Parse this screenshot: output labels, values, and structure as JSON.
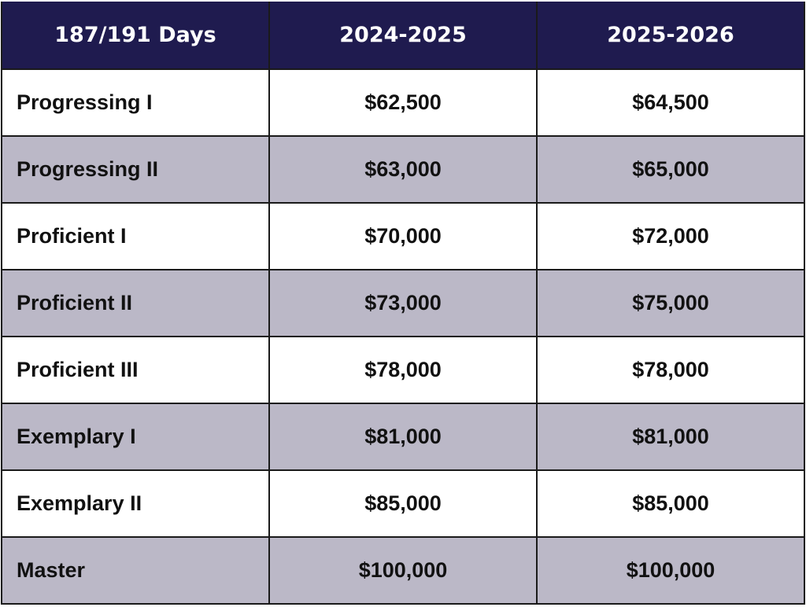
{
  "header": {
    "col1": "187/191 Days",
    "col2": "2024-2025",
    "col3": "2025-2026"
  },
  "rows": [
    {
      "level": "Progressing I",
      "y2024": "$62,500",
      "y2025": "$64,500"
    },
    {
      "level": "Progressing II",
      "y2024": "$63,000",
      "y2025": "$65,000"
    },
    {
      "level": "Proficient I",
      "y2024": "$70,000",
      "y2025": "$72,000"
    },
    {
      "level": "Proficient II",
      "y2024": "$73,000",
      "y2025": "$75,000"
    },
    {
      "level": "Proficient III",
      "y2024": "$78,000",
      "y2025": "$78,000"
    },
    {
      "level": "Exemplary I",
      "y2024": "$81,000",
      "y2025": "$81,000"
    },
    {
      "level": "Exemplary II",
      "y2024": "$85,000",
      "y2025": "$85,000"
    },
    {
      "level": "Master",
      "y2024": "$100,000",
      "y2025": "$100,000"
    }
  ],
  "colors": {
    "header_bg": "#1f1b4f",
    "header_text": "#ffffff",
    "row_alt_bg": "#bbb8c7",
    "row_bg": "#ffffff",
    "border": "#1a1a1a"
  }
}
